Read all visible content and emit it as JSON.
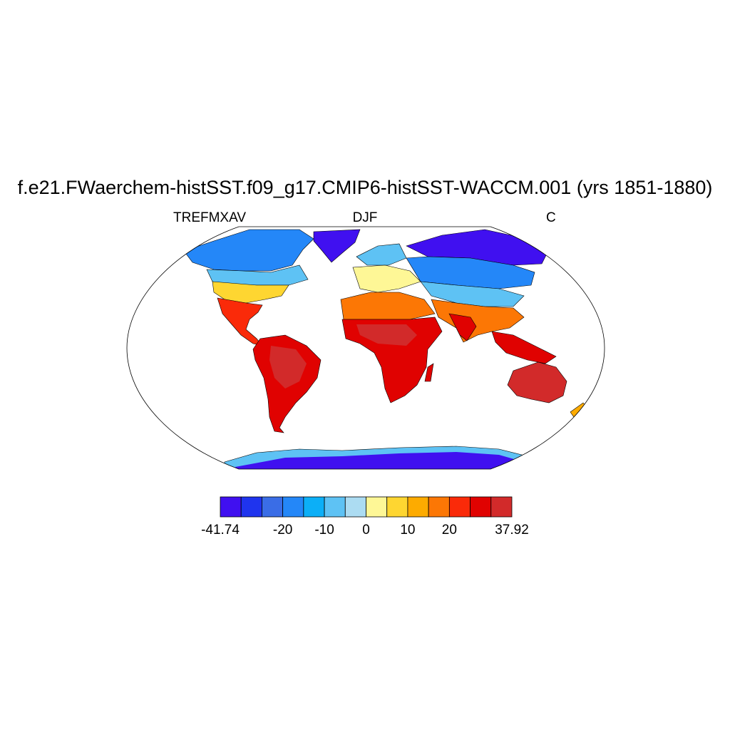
{
  "title": "f.e21.FWaerchem-histSST.f09_g17.CMIP6-histSST-WACCM.001 (yrs 1851-1880)",
  "subtitle_left": "TREFMXAV",
  "subtitle_center": "DJF",
  "subtitle_right": "C",
  "colorbar": {
    "colors": [
      "#4010f0",
      "#1f34ee",
      "#3a6de6",
      "#2487f8",
      "#0caff7",
      "#5ec2f4",
      "#acdcf2",
      "#fef796",
      "#fed631",
      "#fdab00",
      "#fc7705",
      "#fa2a09",
      "#e00201",
      "#d22a2a"
    ],
    "labels": [
      {
        "text": "-41.74",
        "edge": 0
      },
      {
        "text": "-20",
        "edge": 3
      },
      {
        "text": "-10",
        "edge": 5
      },
      {
        "text": "0",
        "edge": 7
      },
      {
        "text": "10",
        "edge": 9
      },
      {
        "text": "20",
        "edge": 11
      },
      {
        "text": "37.92",
        "edge": 14
      }
    ]
  }
}
